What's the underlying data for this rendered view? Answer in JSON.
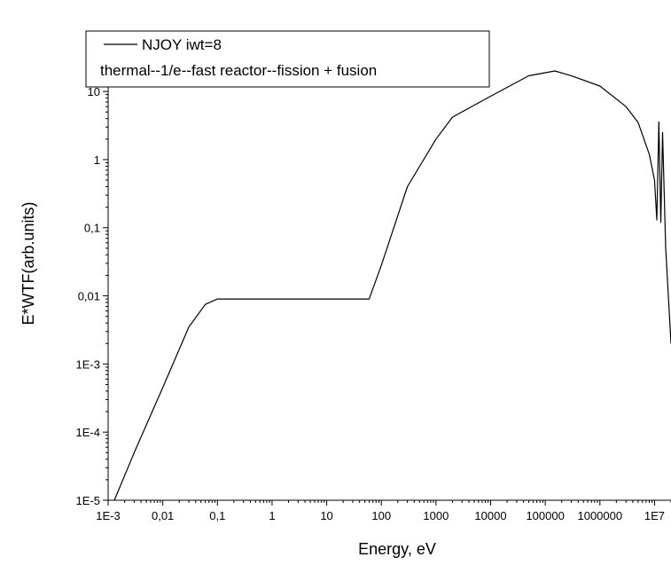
{
  "chart_data": {
    "type": "line",
    "title": "",
    "xlabel": "Energy, eV",
    "ylabel": "E*WTF(arb.units)",
    "xscale": "log",
    "yscale": "log",
    "xlim": [
      0.001,
      20000000
    ],
    "ylim": [
      1e-05,
      20
    ],
    "x_ticks": [
      {
        "value": 0.001,
        "label": "1E-3"
      },
      {
        "value": 0.01,
        "label": "0,01"
      },
      {
        "value": 0.1,
        "label": "0,1"
      },
      {
        "value": 1,
        "label": "1"
      },
      {
        "value": 10,
        "label": "10"
      },
      {
        "value": 100,
        "label": "100"
      },
      {
        "value": 1000,
        "label": "1000"
      },
      {
        "value": 10000,
        "label": "10000"
      },
      {
        "value": 100000,
        "label": "100000"
      },
      {
        "value": 1000000,
        "label": "1000000"
      },
      {
        "value": 10000000,
        "label": "1E7"
      }
    ],
    "y_ticks": [
      {
        "value": 1e-05,
        "label": "1E-5"
      },
      {
        "value": 0.0001,
        "label": "1E-4"
      },
      {
        "value": 0.001,
        "label": "1E-3"
      },
      {
        "value": 0.01,
        "label": "0,01"
      },
      {
        "value": 0.1,
        "label": "0,1"
      },
      {
        "value": 1,
        "label": "1"
      },
      {
        "value": 10,
        "label": "10"
      }
    ],
    "grid": false,
    "legend": {
      "position": "top-left",
      "entries": [
        "NJOY iwt=8"
      ],
      "note": "thermal--1/e--fast reactor--fission + fusion"
    },
    "series": [
      {
        "name": "NJOY iwt=8",
        "color": "#000000",
        "points": [
          [
            0.0013,
            1e-05
          ],
          [
            0.003,
            5e-05
          ],
          [
            0.01,
            0.00045
          ],
          [
            0.03,
            0.0035
          ],
          [
            0.06,
            0.0075
          ],
          [
            0.1,
            0.009
          ],
          [
            1,
            0.009
          ],
          [
            10,
            0.009
          ],
          [
            60,
            0.009
          ],
          [
            100,
            0.028
          ],
          [
            300,
            0.4
          ],
          [
            1000,
            2
          ],
          [
            2000,
            4.2
          ],
          [
            10000,
            8.5
          ],
          [
            50000,
            17
          ],
          [
            150000,
            20
          ],
          [
            300000,
            17
          ],
          [
            1000000,
            12
          ],
          [
            3000000,
            6
          ],
          [
            5000000,
            3.5
          ],
          [
            8000000,
            1.2
          ],
          [
            10000000,
            0.5
          ],
          [
            11000000,
            0.13
          ],
          [
            12000000,
            3.6
          ],
          [
            13000000,
            0.12
          ],
          [
            14000000,
            2.5
          ],
          [
            16000000,
            0.05
          ],
          [
            20000000,
            0.002
          ]
        ]
      }
    ]
  }
}
